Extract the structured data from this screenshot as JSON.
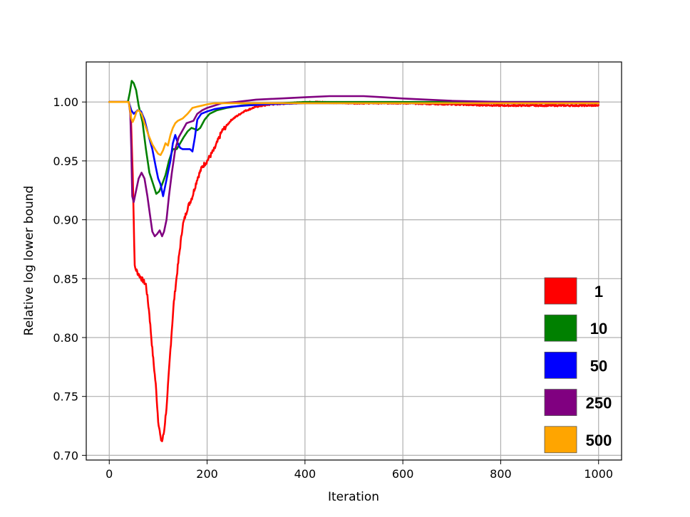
{
  "chart_data": {
    "type": "line",
    "title": "",
    "xlabel": "Iteration",
    "ylabel": "Relative log lower bound",
    "xlim": [
      -47,
      1047
    ],
    "ylim": [
      0.696,
      1.034
    ],
    "xticks": [
      0,
      200,
      400,
      600,
      800,
      1000
    ],
    "xtick_labels": [
      "0",
      "200",
      "400",
      "600",
      "800",
      "1000"
    ],
    "yticks": [
      0.7,
      0.75,
      0.8,
      0.85,
      0.9,
      0.95,
      1.0
    ],
    "ytick_labels": [
      "0.70",
      "0.75",
      "0.80",
      "0.85",
      "0.90",
      "0.95",
      "1.00"
    ],
    "grid": true,
    "legend_position": "bottom-right",
    "series": [
      {
        "name": "1",
        "color": "#ff0000",
        "noisy": true,
        "x": [
          0,
          40,
          44,
          48,
          52,
          58,
          66,
          75,
          82,
          88,
          95,
          100,
          105,
          108,
          112,
          118,
          125,
          132,
          140,
          150,
          160,
          170,
          180,
          190,
          200,
          215,
          230,
          250,
          275,
          300,
          330,
          370,
          420,
          500,
          600,
          700,
          800,
          900,
          1000
        ],
        "y": [
          1.0,
          1.0,
          0.99,
          0.94,
          0.86,
          0.855,
          0.85,
          0.845,
          0.82,
          0.79,
          0.76,
          0.73,
          0.714,
          0.712,
          0.72,
          0.745,
          0.79,
          0.83,
          0.86,
          0.895,
          0.91,
          0.92,
          0.935,
          0.945,
          0.95,
          0.96,
          0.975,
          0.985,
          0.992,
          0.996,
          0.998,
          0.999,
          1.0,
          0.999,
          0.999,
          0.998,
          0.997,
          0.997,
          0.997
        ]
      },
      {
        "name": "10",
        "color": "#008000",
        "noisy": false,
        "x": [
          0,
          38,
          42,
          46,
          50,
          55,
          60,
          68,
          75,
          82,
          90,
          96,
          102,
          108,
          115,
          122,
          130,
          138,
          145,
          152,
          160,
          168,
          175,
          180,
          186,
          195,
          205,
          220,
          240,
          270,
          300,
          350,
          400,
          600,
          800,
          1000
        ],
        "y": [
          1.0,
          1.0,
          1.008,
          1.018,
          1.016,
          1.01,
          0.997,
          0.983,
          0.96,
          0.94,
          0.93,
          0.922,
          0.924,
          0.93,
          0.938,
          0.95,
          0.96,
          0.96,
          0.965,
          0.97,
          0.975,
          0.978,
          0.977,
          0.976,
          0.978,
          0.985,
          0.99,
          0.993,
          0.995,
          0.997,
          0.998,
          0.999,
          1.0,
          1.0,
          1.0,
          1.0
        ]
      },
      {
        "name": "50",
        "color": "#0000ff",
        "noisy": false,
        "x": [
          0,
          40,
          45,
          50,
          58,
          65,
          72,
          80,
          88,
          95,
          100,
          105,
          110,
          115,
          120,
          125,
          130,
          135,
          140,
          145,
          150,
          158,
          165,
          170,
          175,
          180,
          188,
          200,
          215,
          230,
          250,
          280,
          320,
          400,
          600,
          800,
          1000
        ],
        "y": [
          1.0,
          1.0,
          0.993,
          0.99,
          0.993,
          0.992,
          0.985,
          0.972,
          0.96,
          0.945,
          0.935,
          0.93,
          0.92,
          0.93,
          0.94,
          0.95,
          0.965,
          0.972,
          0.965,
          0.961,
          0.96,
          0.96,
          0.96,
          0.958,
          0.97,
          0.985,
          0.99,
          0.992,
          0.994,
          0.995,
          0.996,
          0.997,
          0.998,
          0.999,
          0.999,
          0.999,
          0.999
        ]
      },
      {
        "name": "250",
        "color": "#800080",
        "noisy": false,
        "x": [
          0,
          40,
          43,
          45,
          47,
          50,
          55,
          60,
          66,
          72,
          78,
          83,
          88,
          93,
          98,
          103,
          108,
          112,
          117,
          122,
          128,
          135,
          142,
          150,
          158,
          165,
          172,
          180,
          190,
          200,
          215,
          230,
          260,
          300,
          350,
          400,
          450,
          480,
          520,
          560,
          600,
          650,
          700,
          800,
          1000
        ],
        "y": [
          1.0,
          1.0,
          0.99,
          0.96,
          0.92,
          0.915,
          0.925,
          0.935,
          0.94,
          0.935,
          0.92,
          0.905,
          0.89,
          0.886,
          0.888,
          0.891,
          0.886,
          0.89,
          0.9,
          0.92,
          0.94,
          0.96,
          0.97,
          0.976,
          0.982,
          0.983,
          0.984,
          0.99,
          0.993,
          0.995,
          0.997,
          0.999,
          1.0,
          1.002,
          1.003,
          1.004,
          1.005,
          1.005,
          1.005,
          1.004,
          1.003,
          1.002,
          1.001,
          1.0,
          1.0
        ]
      },
      {
        "name": "500",
        "color": "#ffa500",
        "noisy": false,
        "x": [
          0,
          40,
          45,
          48,
          52,
          56,
          60,
          66,
          72,
          80,
          88,
          95,
          100,
          105,
          110,
          115,
          120,
          125,
          130,
          135,
          140,
          150,
          160,
          170,
          180,
          190,
          200,
          215,
          230,
          260,
          300,
          400,
          600,
          800,
          1000
        ],
        "y": [
          1.0,
          1.0,
          0.986,
          0.983,
          0.987,
          0.992,
          0.993,
          0.99,
          0.982,
          0.972,
          0.964,
          0.959,
          0.956,
          0.955,
          0.959,
          0.965,
          0.963,
          0.972,
          0.978,
          0.982,
          0.984,
          0.986,
          0.99,
          0.995,
          0.996,
          0.997,
          0.998,
          0.999,
          0.999,
          0.999,
          0.999,
          0.999,
          0.999,
          0.999,
          0.999
        ]
      }
    ]
  }
}
